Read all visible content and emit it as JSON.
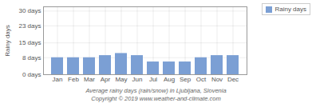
{
  "chart_data": {
    "type": "bar",
    "categories": [
      "Jan",
      "Feb",
      "Mar",
      "Apr",
      "May",
      "Jun",
      "Jul",
      "Aug",
      "Sep",
      "Oct",
      "Nov",
      "Dec"
    ],
    "series": [
      {
        "name": "Rainy days",
        "color": "#7b9fd4",
        "values": [
          8,
          8,
          8,
          9,
          10,
          9,
          6,
          6,
          6,
          8,
          9,
          9
        ]
      }
    ],
    "ylim": [
      0,
      32
    ],
    "yticks": [
      {
        "value": 0,
        "label": "0 days"
      },
      {
        "value": 8,
        "label": "8 days"
      },
      {
        "value": 15,
        "label": "15 days"
      },
      {
        "value": 23,
        "label": "23 days"
      },
      {
        "value": 30,
        "label": "30 days"
      }
    ],
    "ylabel": "Rainy days",
    "xlabel": "Average rainy days (rain/snow) in Ljubljana, Slovenia",
    "annotations": [
      "Copyright © 2019 www.weather-and-climate.com"
    ],
    "grid": true,
    "legend": "upper right"
  }
}
